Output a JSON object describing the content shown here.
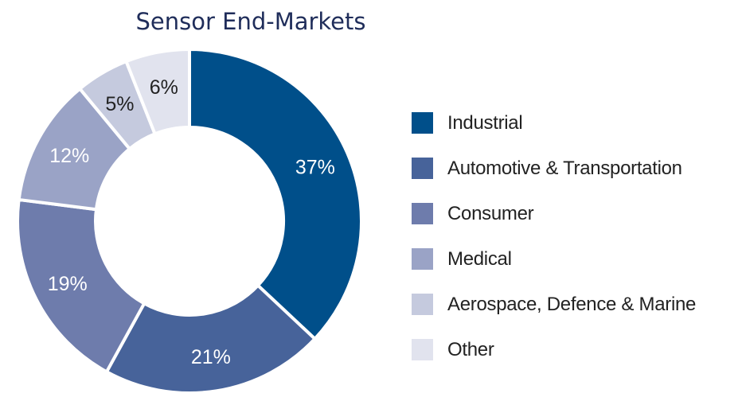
{
  "chart_data": {
    "type": "pie",
    "variant": "donut",
    "title": "Sensor End-Markets",
    "legend_position": "right",
    "slices": [
      {
        "label": "Industrial",
        "value": 37,
        "display": "37%",
        "color": "#004f8a",
        "text_color": "#ffffff"
      },
      {
        "label": "Automotive & Transportation",
        "value": 21,
        "display": "21%",
        "color": "#47639a",
        "text_color": "#ffffff"
      },
      {
        "label": "Consumer",
        "value": 19,
        "display": "19%",
        "color": "#6e7cac",
        "text_color": "#ffffff"
      },
      {
        "label": "Medical",
        "value": 12,
        "display": "12%",
        "color": "#9aa3c6",
        "text_color": "#ffffff"
      },
      {
        "label": "Aerospace, Defence & Marine",
        "value": 5,
        "display": "5%",
        "color": "#c5cade",
        "text_color": "#222222"
      },
      {
        "label": "Other",
        "value": 6,
        "display": "6%",
        "color": "#e1e3ee",
        "text_color": "#222222"
      }
    ]
  }
}
